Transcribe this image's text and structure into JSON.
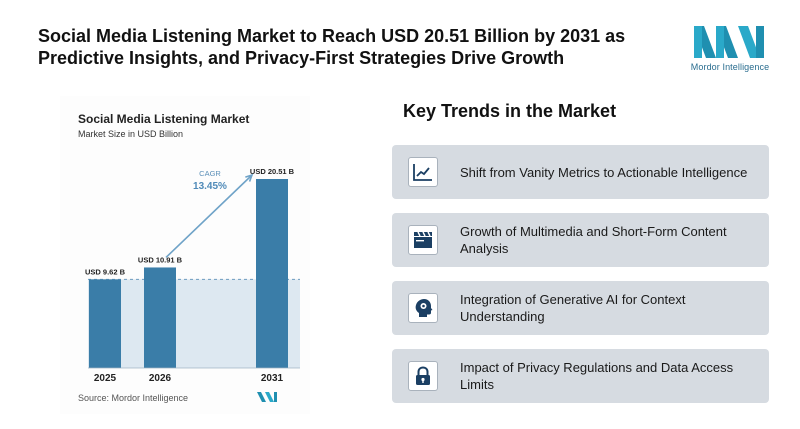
{
  "headline": "Social Media Listening Market to Reach USD 20.51 Billion by 2031 as Predictive Insights, and Privacy-First Strategies Drive Growth",
  "logo": {
    "text": "Mordor Intelligence",
    "color": "#1ea7c5"
  },
  "chart_data": {
    "type": "bar",
    "title": "Social Media Listening Market",
    "subtitle": "Market Size in USD Billion",
    "categories": [
      "2025",
      "2026",
      "2031"
    ],
    "values": [
      9.62,
      10.91,
      20.51
    ],
    "value_labels": [
      "USD 9.62 B",
      "USD 10.91 B",
      "USD 20.51 B"
    ],
    "cagr_label": "CAGR",
    "cagr_value": "13.45%",
    "source": "Source: Mordor Intelligence",
    "bar_color": "#3a7da8",
    "shading_color": "#dde8f1",
    "ylim": [
      0,
      20.51
    ],
    "grid": false
  },
  "trends": {
    "title": "Key Trends in the Market",
    "items": [
      {
        "label": "Shift from Vanity Metrics to Actionable Intelligence",
        "icon": "line-chart-icon"
      },
      {
        "label": "Growth of Multimedia and Short-Form Content Analysis",
        "icon": "clapperboard-icon"
      },
      {
        "label": "Integration of Generative AI for Context Understanding",
        "icon": "head-gear-icon"
      },
      {
        "label": "Impact of Privacy Regulations and Data Access Limits",
        "icon": "lock-icon"
      }
    ]
  },
  "icon_color": "#1b3f63"
}
